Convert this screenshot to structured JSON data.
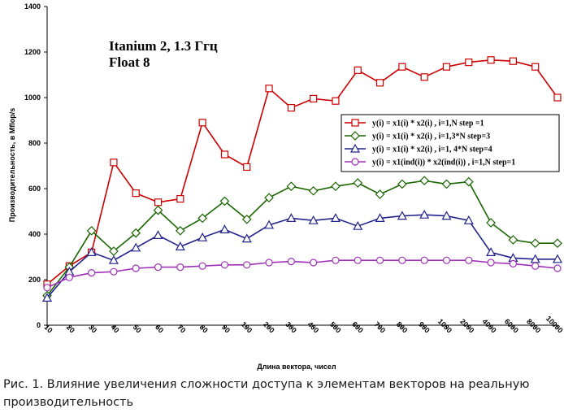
{
  "chart_data": {
    "type": "line",
    "title_lines": [
      "Itanium 2, 1.3 Ггц",
      "Float 8"
    ],
    "xlabel": "Длина вектора, чисел",
    "ylabel": "Производительность, в Mflop/s",
    "ylim": [
      0,
      1400
    ],
    "yticks": [
      0,
      200,
      400,
      600,
      800,
      1000,
      1200,
      1400
    ],
    "grid": false,
    "legend_position": "right",
    "categories": [
      "10",
      "20",
      "30",
      "40",
      "50",
      "60",
      "70",
      "80",
      "90",
      "100",
      "200",
      "300",
      "400",
      "500",
      "600",
      "700",
      "800",
      "900",
      "1000",
      "2000",
      "4000",
      "6000",
      "8000",
      "10000"
    ],
    "series": [
      {
        "name": "y(i) = x1(i) * x2(i) , i=1,N step =1",
        "color": "#cc0000",
        "marker": "square",
        "values": [
          180,
          260,
          320,
          715,
          580,
          540,
          555,
          890,
          750,
          695,
          1040,
          955,
          995,
          985,
          1120,
          1065,
          1135,
          1090,
          1135,
          1155,
          1165,
          1160,
          1135,
          1000
        ]
      },
      {
        "name": "y(i) = x1(i) * x2(i) , i=1,3*N step=3",
        "color": "#1a6600",
        "marker": "diamond",
        "values": [
          130,
          255,
          415,
          325,
          405,
          505,
          415,
          470,
          545,
          465,
          560,
          610,
          590,
          610,
          625,
          575,
          620,
          635,
          620,
          630,
          450,
          375,
          360,
          360
        ]
      },
      {
        "name": "y(i) = x1(i) * x2(i) , i=1, 4*N step=4",
        "color": "#22228c",
        "marker": "triangle",
        "values": [
          120,
          235,
          320,
          285,
          340,
          395,
          345,
          385,
          420,
          380,
          440,
          470,
          460,
          470,
          435,
          470,
          480,
          485,
          480,
          460,
          320,
          295,
          290,
          290
        ]
      },
      {
        "name": "y(i) = x1(ind(i)) * x2(ind(i)) , i=1,N step=1",
        "color": "#a030b8",
        "marker": "circle",
        "values": [
          165,
          210,
          230,
          235,
          250,
          255,
          255,
          260,
          265,
          265,
          275,
          280,
          275,
          285,
          285,
          285,
          285,
          285,
          285,
          285,
          275,
          270,
          260,
          250
        ]
      }
    ]
  },
  "caption": "Рис. 1. Влияние увеличения сложности доступа к элементам векторов на реальную производительность"
}
